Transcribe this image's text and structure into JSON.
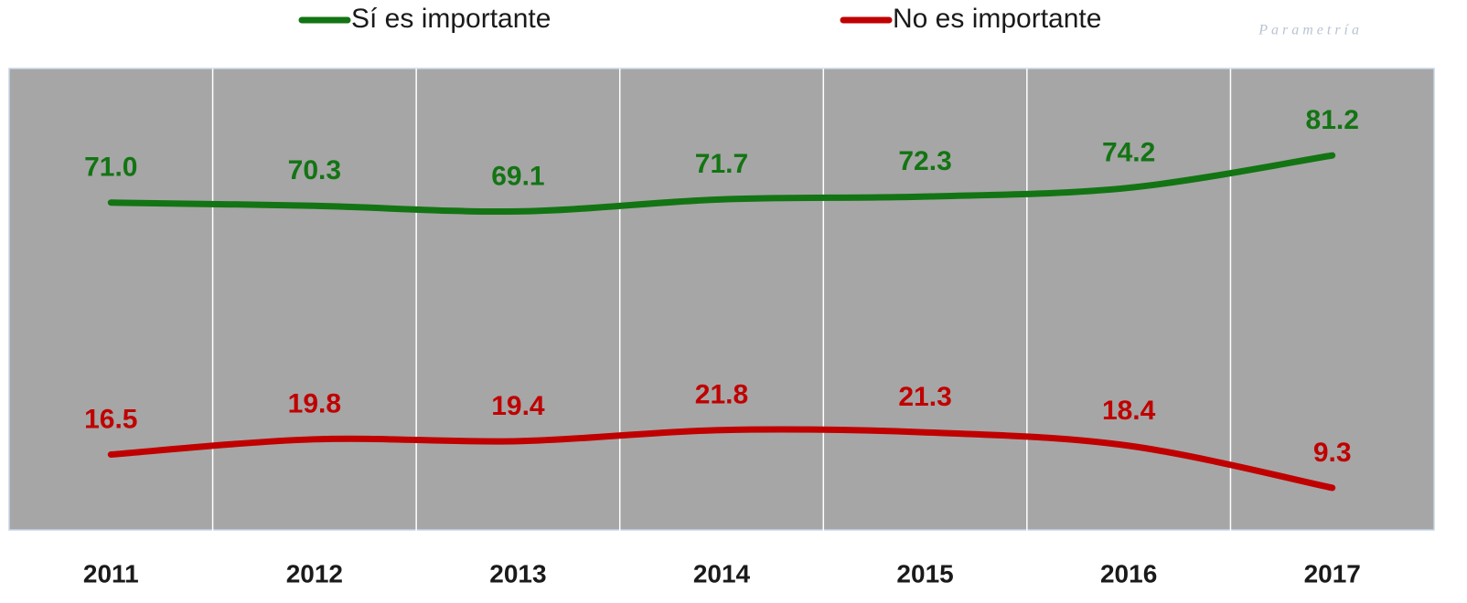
{
  "chart_data": {
    "type": "line",
    "watermark": "Parametría",
    "categories": [
      "2011",
      "2012",
      "2013",
      "2014",
      "2015",
      "2016",
      "2017"
    ],
    "series": [
      {
        "name": "Sí es importante",
        "color": "#137413",
        "values": [
          71.0,
          70.3,
          69.1,
          71.7,
          72.3,
          74.2,
          81.2
        ],
        "value_labels": [
          "71.0",
          "70.3",
          "69.1",
          "71.7",
          "72.3",
          "74.2",
          "81.2"
        ]
      },
      {
        "name": "No es importante",
        "color": "#c00000",
        "values": [
          16.5,
          19.8,
          19.4,
          21.8,
          21.3,
          18.4,
          9.3
        ],
        "value_labels": [
          "16.5",
          "19.8",
          "19.4",
          "21.8",
          "21.3",
          "18.4",
          "9.3"
        ]
      }
    ],
    "ylim": [
      0,
      100
    ],
    "grid": true,
    "smooth": true
  }
}
